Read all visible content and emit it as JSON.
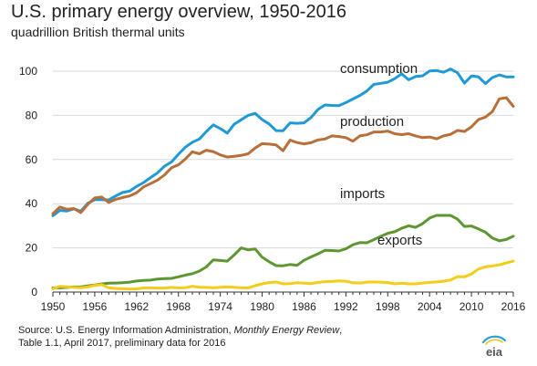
{
  "title": "U.S. primary energy overview, 1950-2016",
  "subtitle": "quadrillion British thermal units",
  "source": {
    "line1_prefix": "Source: U.S. Energy Information  Administration, ",
    "line1_italic": "Monthly Energy Review",
    "line1_suffix": ",",
    "line2": "Table 1.1, April 2017, preliminary data for 2016"
  },
  "logo_text": "eia",
  "chart_data": {
    "type": "line",
    "title": "U.S. primary energy overview, 1950-2016",
    "subtitle": "quadrillion British thermal units",
    "xlabel": "",
    "ylabel": "",
    "xlim": [
      1950,
      2016
    ],
    "ylim": [
      0,
      100
    ],
    "x_ticks": [
      1950,
      1956,
      1962,
      1968,
      1974,
      1980,
      1986,
      1992,
      1998,
      2004,
      2010,
      2016
    ],
    "y_ticks": [
      0,
      20,
      40,
      60,
      80,
      100
    ],
    "grid": {
      "horizontal": true,
      "vertical": false
    },
    "legend": "inline labels",
    "x": [
      1950,
      1951,
      1952,
      1953,
      1954,
      1955,
      1956,
      1957,
      1958,
      1959,
      1960,
      1961,
      1962,
      1963,
      1964,
      1965,
      1966,
      1967,
      1968,
      1969,
      1970,
      1971,
      1972,
      1973,
      1974,
      1975,
      1976,
      1977,
      1978,
      1979,
      1980,
      1981,
      1982,
      1983,
      1984,
      1985,
      1986,
      1987,
      1988,
      1989,
      1990,
      1991,
      1992,
      1993,
      1994,
      1995,
      1996,
      1997,
      1998,
      1999,
      2000,
      2001,
      2002,
      2003,
      2004,
      2005,
      2006,
      2007,
      2008,
      2009,
      2010,
      2011,
      2012,
      2013,
      2014,
      2015,
      2016
    ],
    "series": [
      {
        "name": "consumption",
        "color": "#1f9ad6",
        "values": [
          34.6,
          37.0,
          36.7,
          37.7,
          36.6,
          40.2,
          41.8,
          41.8,
          41.7,
          43.5,
          45.1,
          45.7,
          47.8,
          49.6,
          51.8,
          54.0,
          57.0,
          58.9,
          62.4,
          65.6,
          67.8,
          69.3,
          72.7,
          75.7,
          74.0,
          72.0,
          76.0,
          78.0,
          80.0,
          80.9,
          78.1,
          76.1,
          73.1,
          73.0,
          76.6,
          76.4,
          76.6,
          79.0,
          82.7,
          84.7,
          84.5,
          84.4,
          85.8,
          87.4,
          89.0,
          91.0,
          94.0,
          94.5,
          95.0,
          96.6,
          98.8,
          96.1,
          97.6,
          97.9,
          100.1,
          100.3,
          99.5,
          101.0,
          99.3,
          94.6,
          97.8,
          97.5,
          94.4,
          97.1,
          98.3,
          97.4,
          97.4
        ]
      },
      {
        "name": "production",
        "color": "#b86f39",
        "values": [
          35.5,
          38.5,
          37.5,
          37.8,
          36.0,
          39.7,
          42.6,
          43.0,
          40.6,
          42.0,
          42.8,
          43.5,
          45.0,
          47.6,
          49.1,
          50.7,
          53.0,
          56.3,
          57.6,
          60.3,
          63.5,
          62.6,
          64.2,
          63.6,
          62.1,
          61.1,
          61.5,
          61.9,
          62.6,
          65.2,
          67.2,
          67.0,
          66.6,
          64.0,
          68.8,
          67.7,
          67.1,
          67.6,
          68.9,
          69.3,
          70.7,
          70.4,
          69.9,
          68.3,
          70.7,
          71.2,
          72.5,
          72.5,
          72.9,
          71.7,
          71.3,
          71.7,
          70.7,
          69.9,
          70.2,
          69.4,
          70.7,
          71.4,
          73.2,
          72.7,
          74.8,
          78.1,
          79.2,
          81.7,
          87.5,
          88.0,
          84.1
        ]
      },
      {
        "name": "imports",
        "color": "#5e9732",
        "values": [
          1.9,
          1.9,
          2.1,
          2.3,
          2.3,
          2.8,
          3.2,
          3.7,
          4.0,
          4.1,
          4.2,
          4.5,
          5.0,
          5.3,
          5.4,
          5.9,
          6.1,
          6.2,
          6.9,
          7.7,
          8.3,
          9.5,
          11.4,
          14.6,
          14.3,
          14.0,
          16.8,
          20.0,
          19.1,
          19.5,
          15.8,
          13.7,
          12.0,
          11.9,
          12.5,
          12.1,
          14.4,
          15.9,
          17.3,
          18.9,
          18.8,
          18.6,
          19.6,
          21.4,
          22.4,
          22.3,
          23.7,
          25.2,
          26.6,
          27.3,
          28.9,
          30.0,
          29.3,
          31.0,
          33.5,
          34.7,
          34.7,
          34.7,
          33.0,
          29.7,
          29.9,
          28.6,
          27.1,
          24.5,
          23.2,
          23.8,
          25.3
        ]
      },
      {
        "name": "exports",
        "color": "#f5cc1a",
        "values": [
          1.5,
          2.6,
          2.4,
          2.1,
          2.0,
          2.3,
          3.0,
          3.4,
          2.0,
          1.6,
          1.5,
          1.4,
          1.4,
          1.9,
          1.9,
          1.8,
          1.8,
          2.1,
          1.9,
          2.0,
          2.6,
          2.2,
          2.1,
          2.0,
          2.2,
          2.3,
          2.2,
          2.0,
          1.9,
          2.9,
          3.7,
          4.3,
          4.6,
          3.7,
          3.8,
          4.2,
          4.0,
          3.8,
          4.4,
          4.7,
          4.8,
          5.1,
          4.9,
          4.2,
          4.1,
          4.5,
          4.6,
          4.5,
          4.3,
          3.7,
          4.0,
          3.7,
          3.7,
          4.1,
          4.4,
          4.6,
          4.9,
          5.4,
          7.0,
          6.9,
          8.2,
          10.4,
          11.4,
          11.8,
          12.3,
          13.2,
          14.0
        ]
      }
    ]
  }
}
